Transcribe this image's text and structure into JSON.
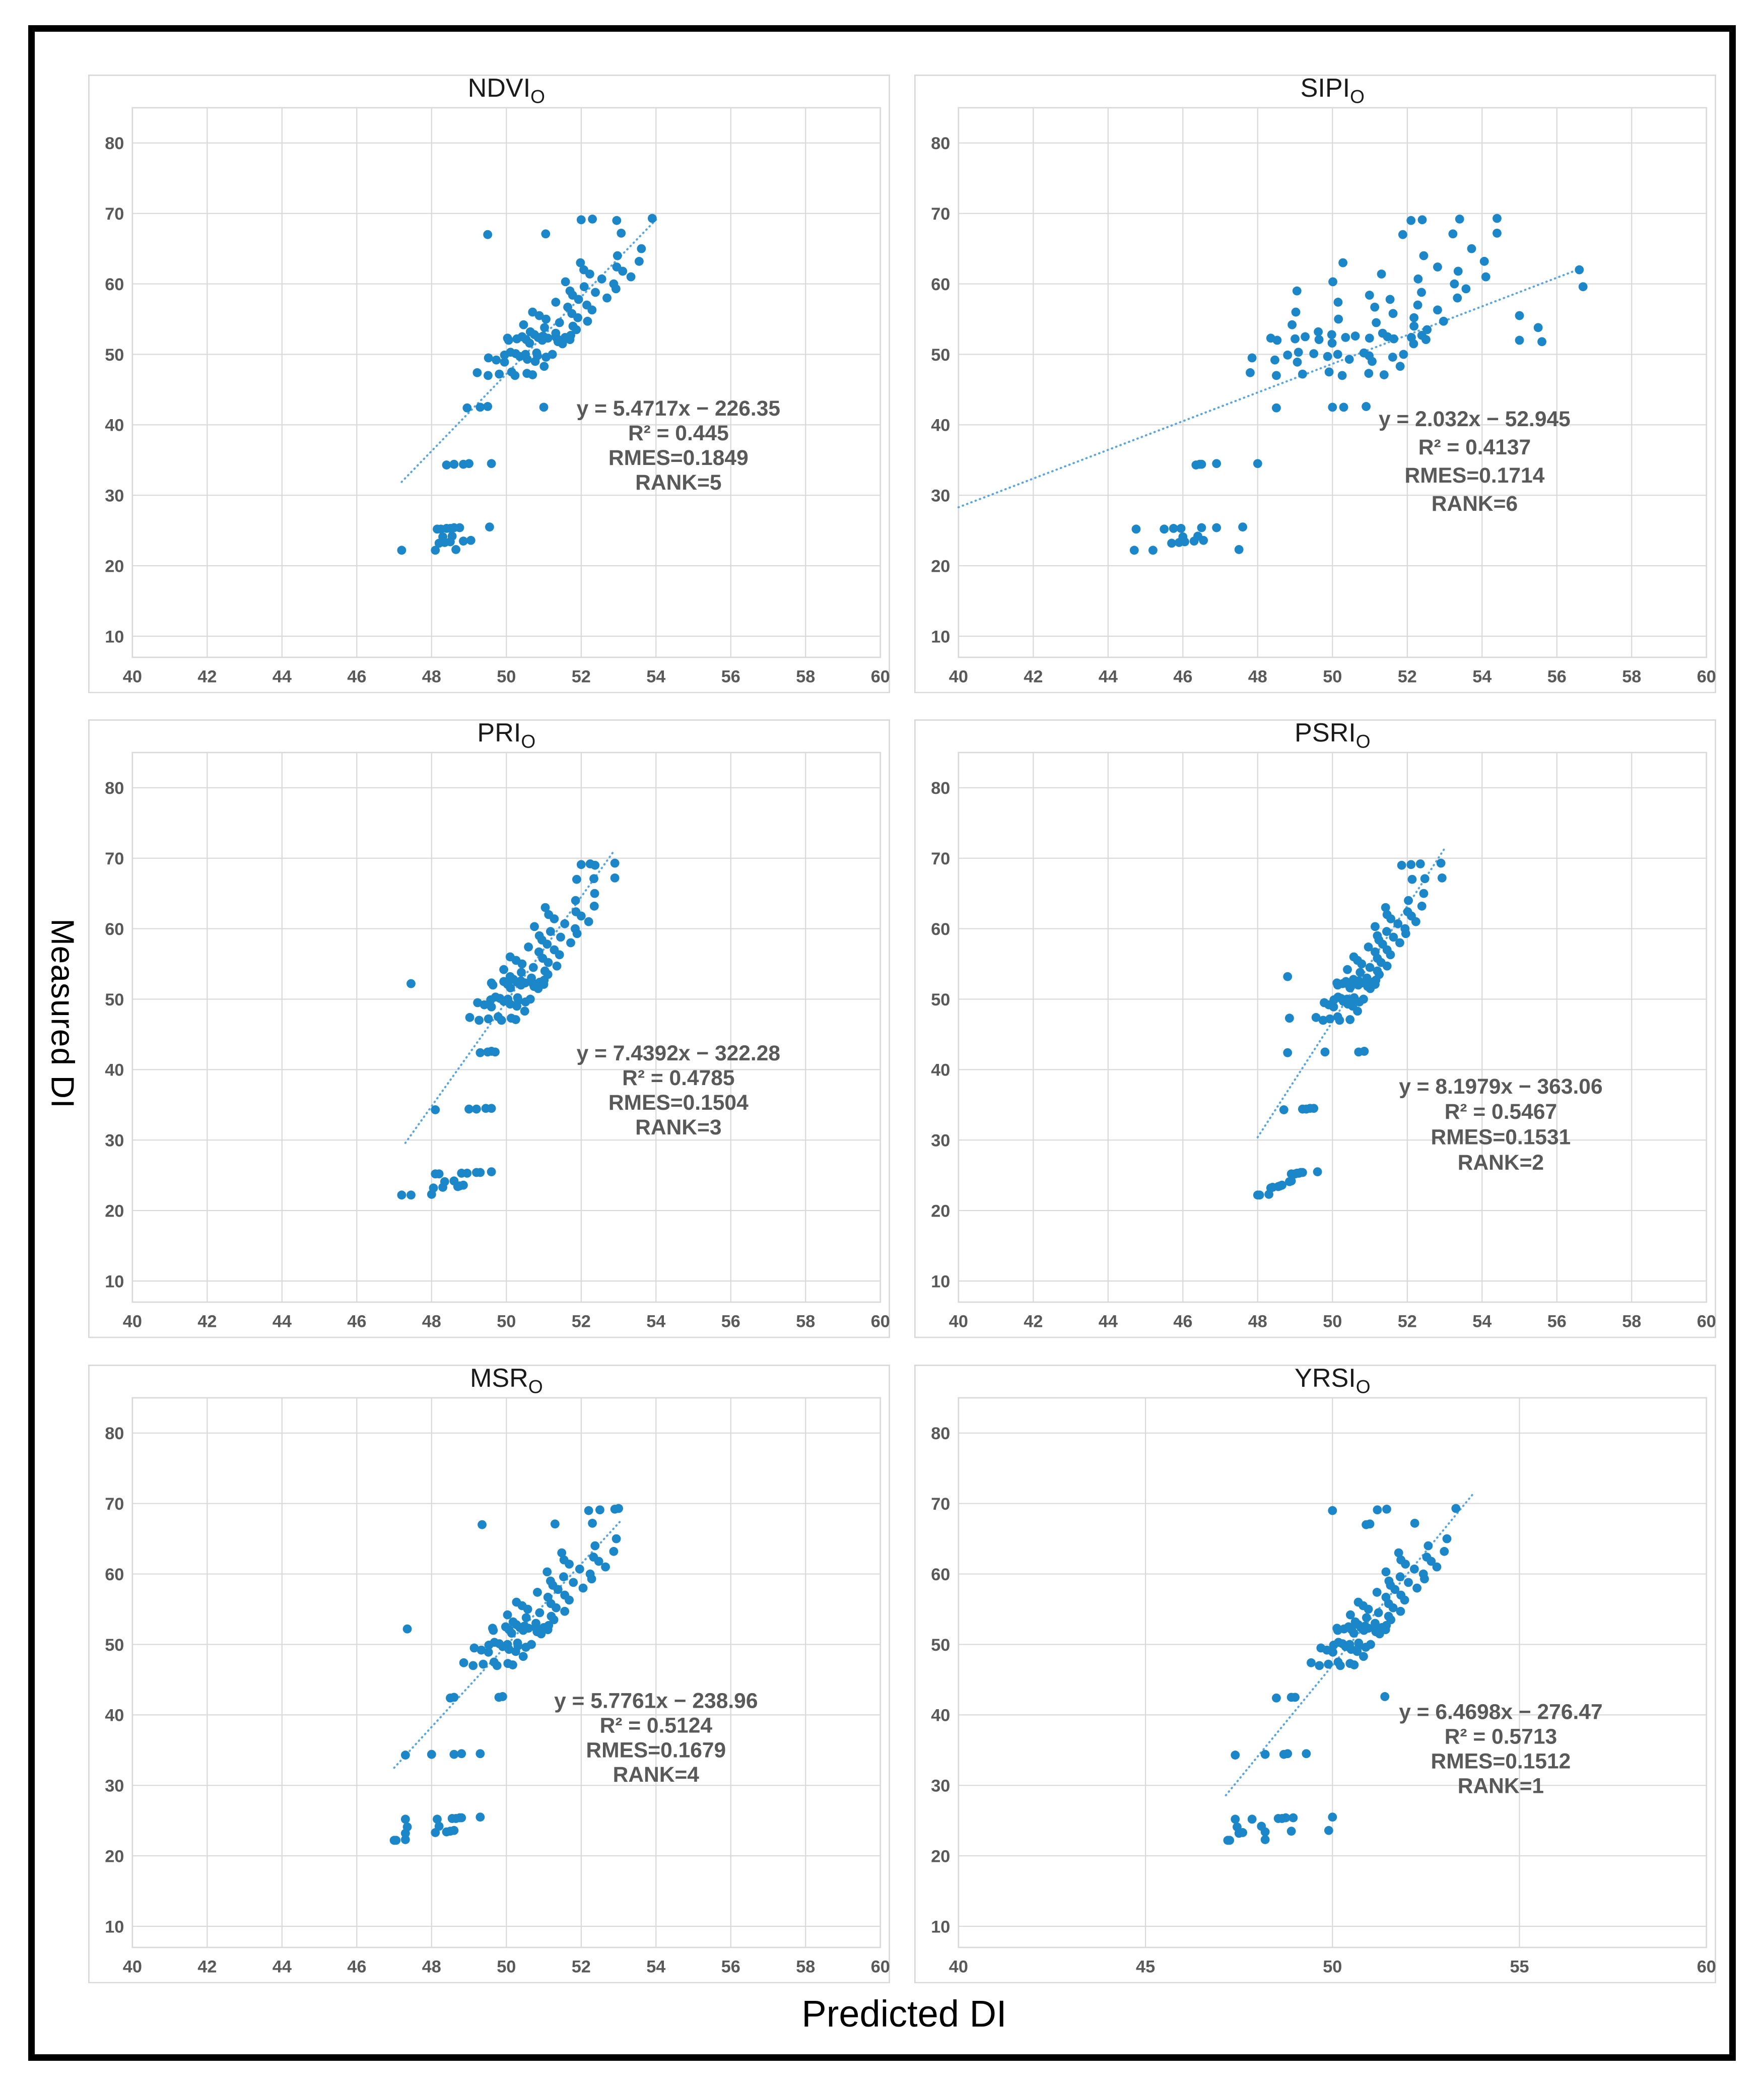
{
  "figure": {
    "xlabel": "Predicted DI",
    "ylabel": "Measured DI"
  },
  "style": {
    "point_color": "#1B86C8",
    "trend_color": "#59A7DD",
    "grid_color": "#D9D9D9",
    "panel_border": "#D9D9D9",
    "tick_color": "#595959",
    "title_color": "#1A1A1A",
    "annotation_color": "#595959",
    "outer_border": "#000000",
    "background": "#FFFFFF"
  },
  "chart_data": {
    "type": "scatter",
    "xlabel": "Predicted DI",
    "ylabel": "Measured DI",
    "xlim": [
      40,
      60
    ],
    "ylim": [
      10,
      80
    ],
    "grid": true,
    "yticks": [
      10,
      20,
      30,
      40,
      50,
      60,
      70,
      80
    ],
    "shared_y_measured_di": [
      22.2,
      22.2,
      22.3,
      23.2,
      23.3,
      23.4,
      23.5,
      23.6,
      24.1,
      24.2,
      25.2,
      25.2,
      25.3,
      25.3,
      25.4,
      25.4,
      25.5,
      34.3,
      34.4,
      34.4,
      34.5,
      34.5,
      42.4,
      42.5,
      42.5,
      42.6,
      47.0,
      47.0,
      47.1,
      47.2,
      47.3,
      47.4,
      47.5,
      48.3,
      48.9,
      49.0,
      49.2,
      49.3,
      49.5,
      49.6,
      49.7,
      49.8,
      49.9,
      50.0,
      50.0,
      50.1,
      50.2,
      50.3,
      51.5,
      51.6,
      51.8,
      52.0,
      52.0,
      52.1,
      52.1,
      52.2,
      52.2,
      52.3,
      52.3,
      52.4,
      52.4,
      52.5,
      52.5,
      52.6,
      52.7,
      52.8,
      53.0,
      53.2,
      53.5,
      53.8,
      54.0,
      54.2,
      54.5,
      54.7,
      55.0,
      55.2,
      55.5,
      55.8,
      56.0,
      56.3,
      56.7,
      57.0,
      57.4,
      57.8,
      58.0,
      58.4,
      58.8,
      59.0,
      59.3,
      59.6,
      60.0,
      60.3,
      60.7,
      61.0,
      61.4,
      61.8,
      62.0,
      62.4,
      63.0,
      63.2,
      64.0,
      65.0,
      67.0,
      67.1,
      67.2,
      69.0,
      69.1,
      69.2,
      69.3
    ],
    "panels": [
      {
        "id": "ndvi",
        "title": "NDVI",
        "title_sub": "O",
        "equation": "y = 5.4717x − 226.35",
        "r2": "R² = 0.445",
        "rmes": "RMES=0.1849",
        "rank": "RANK=5",
        "xticks": [
          40,
          42,
          44,
          46,
          48,
          50,
          52,
          54,
          56,
          58,
          60
        ],
        "trendline": [
          [
            47.2,
            31.9
          ],
          [
            54.0,
            69.1
          ]
        ],
        "annotation_anchor": [
          54.6,
          41.3
        ],
        "annotation_step": 3.5,
        "x_values": [
          47.2,
          48.1,
          48.65,
          48.2,
          48.35,
          48.5,
          48.85,
          49.05,
          48.3,
          48.55,
          48.15,
          48.25,
          48.4,
          48.5,
          48.6,
          48.75,
          49.55,
          48.4,
          48.6,
          48.85,
          49.0,
          49.6,
          48.95,
          49.3,
          51.0,
          49.5,
          50.23,
          49.51,
          50.7,
          49.81,
          50.55,
          49.22,
          50.14,
          51.01,
          49.95,
          50.77,
          49.73,
          50.56,
          49.52,
          51.06,
          50.36,
          50.83,
          49.95,
          50.51,
          51.23,
          50.25,
          50.81,
          50.11,
          51.5,
          50.62,
          51.38,
          50.06,
          50.96,
          51.7,
          50.53,
          51.36,
          50.28,
          51.11,
          50.03,
          51.57,
          50.85,
          51.32,
          50.42,
          50.98,
          51.72,
          50.75,
          51.32,
          50.64,
          51.87,
          51.02,
          51.78,
          50.46,
          51.42,
          52.17,
          51.06,
          51.91,
          50.88,
          51.75,
          50.7,
          52.29,
          51.64,
          52.15,
          51.32,
          51.93,
          52.69,
          51.77,
          52.38,
          51.7,
          52.93,
          52.08,
          52.87,
          51.58,
          52.55,
          53.33,
          52.23,
          53.11,
          52.07,
          52.95,
          51.98,
          53.55,
          52.97,
          53.61,
          49.5,
          51.05,
          53.07,
          52.95,
          52.0,
          52.3,
          53.9
        ]
      },
      {
        "id": "sipi",
        "title": "SIPI",
        "title_sub": "O",
        "equation": "y = 2.032x − 52.945",
        "r2": "R² = 0.4137",
        "rmes": "RMES=0.1714",
        "rank": "RANK=6",
        "xticks": [
          40,
          42,
          44,
          46,
          48,
          50,
          52,
          54,
          56,
          58,
          60
        ],
        "trendline": [
          [
            40.0,
            28.3
          ],
          [
            56.6,
            62.1
          ]
        ],
        "annotation_anchor": [
          53.8,
          39.8
        ],
        "annotation_step": 4.0,
        "x_values": [
          44.7,
          45.2,
          47.5,
          45.7,
          45.9,
          46.05,
          46.3,
          46.55,
          46.0,
          46.4,
          44.75,
          45.5,
          45.75,
          45.95,
          46.5,
          46.9,
          47.6,
          46.35,
          46.45,
          46.5,
          46.9,
          48.0,
          48.5,
          50.0,
          50.3,
          50.9,
          50.26,
          48.5,
          51.38,
          49.2,
          50.97,
          47.8,
          49.91,
          51.81,
          49.06,
          51.06,
          48.46,
          50.45,
          47.85,
          51.61,
          49.87,
          50.98,
          48.8,
          50.14,
          51.9,
          49.5,
          50.84,
          49.09,
          52.17,
          49.99,
          55.6,
          48.52,
          55.0,
          52.5,
          49.64,
          51.64,
          49.0,
          50.99,
          48.35,
          52.11,
          50.35,
          51.47,
          49.27,
          50.61,
          52.39,
          49.98,
          51.34,
          49.62,
          52.53,
          55.5,
          52.18,
          48.92,
          51.17,
          52.97,
          50.16,
          52.18,
          55.0,
          51.62,
          49.02,
          52.81,
          51.13,
          52.28,
          50.15,
          51.54,
          53.34,
          50.99,
          52.38,
          49.05,
          53.57,
          56.7,
          53.26,
          50.01,
          52.29,
          54.1,
          51.31,
          53.36,
          56.6,
          52.81,
          50.28,
          54.06,
          52.44,
          53.72,
          51.88,
          53.22,
          54.4,
          52.1,
          52.4,
          53.4,
          54.4
        ]
      },
      {
        "id": "pri",
        "title": "PRI",
        "title_sub": "O",
        "equation": "y = 7.4392x − 322.28",
        "r2": "R² = 0.4785",
        "rmes": "RMES=0.1504",
        "rank": "RANK=3",
        "xticks": [
          40,
          42,
          44,
          46,
          48,
          50,
          52,
          54,
          56,
          58,
          60
        ],
        "trendline": [
          [
            47.3,
            29.6
          ],
          [
            52.9,
            71.2
          ]
        ],
        "annotation_anchor": [
          54.6,
          41.3
        ],
        "annotation_step": 3.5,
        "x_values": [
          47.2,
          47.45,
          48.0,
          48.05,
          48.3,
          48.7,
          48.75,
          48.85,
          48.35,
          48.6,
          48.1,
          48.2,
          48.8,
          48.95,
          49.2,
          49.3,
          49.6,
          48.1,
          49.0,
          49.2,
          49.45,
          49.6,
          49.3,
          49.5,
          49.7,
          49.6,
          49.87,
          49.27,
          50.25,
          49.52,
          50.13,
          49.02,
          49.78,
          50.49,
          49.6,
          50.28,
          49.41,
          50.1,
          49.23,
          50.51,
          49.93,
          50.32,
          49.58,
          50.04,
          50.64,
          49.83,
          50.3,
          49.71,
          50.85,
          50.11,
          50.74,
          49.64,
          50.39,
          51.0,
          50.03,
          50.71,
          47.45,
          50.5,
          49.6,
          50.89,
          50.29,
          50.68,
          49.93,
          50.39,
          51.01,
          50.19,
          50.67,
          50.1,
          51.11,
          50.4,
          51.03,
          49.93,
          50.72,
          51.35,
          50.42,
          51.12,
          50.26,
          50.97,
          50.1,
          51.42,
          50.87,
          51.28,
          50.59,
          51.09,
          51.72,
          50.95,
          51.45,
          50.88,
          51.89,
          51.18,
          51.84,
          50.75,
          51.56,
          52.2,
          51.28,
          52.0,
          51.13,
          51.86,
          51.04,
          52.35,
          51.85,
          52.36,
          51.88,
          52.34,
          52.9,
          52.37,
          52.0,
          52.24,
          52.9
        ]
      },
      {
        "id": "psri",
        "title": "PSRI",
        "title_sub": "O",
        "equation": "y = 8.1979x − 363.06",
        "r2": "R² = 0.5467",
        "rmes": "RMES=0.1531",
        "rank": "RANK=2",
        "xticks": [
          40,
          42,
          44,
          46,
          48,
          50,
          52,
          54,
          56,
          58,
          60
        ],
        "trendline": [
          [
            48.0,
            30.4
          ],
          [
            53.0,
            71.4
          ]
        ],
        "annotation_anchor": [
          54.5,
          36.6
        ],
        "annotation_step": 3.6,
        "x_values": [
          48.0,
          48.05,
          48.3,
          48.35,
          48.4,
          48.55,
          48.6,
          48.65,
          48.85,
          48.9,
          48.9,
          49.0,
          49.05,
          49.1,
          49.15,
          49.2,
          49.6,
          48.7,
          49.2,
          49.3,
          49.4,
          49.5,
          48.8,
          49.8,
          50.7,
          50.85,
          50.19,
          49.75,
          50.47,
          49.93,
          48.85,
          49.56,
          50.14,
          50.67,
          50.03,
          50.54,
          49.9,
          50.41,
          49.78,
          50.72,
          50.29,
          50.58,
          50.04,
          50.39,
          50.83,
          50.23,
          50.58,
          50.15,
          51.01,
          50.47,
          50.94,
          50.14,
          50.69,
          51.14,
          50.42,
          50.93,
          50.27,
          50.78,
          50.12,
          51.06,
          50.62,
          50.91,
          50.36,
          50.7,
          51.16,
          50.56,
          50.92,
          48.8,
          51.25,
          50.74,
          51.2,
          50.4,
          51.0,
          51.46,
          50.78,
          51.3,
          50.67,
          51.2,
          50.57,
          51.55,
          51.14,
          51.46,
          50.96,
          51.34,
          51.8,
          51.24,
          51.63,
          51.2,
          51.96,
          51.45,
          51.94,
          51.14,
          51.75,
          52.23,
          51.56,
          52.11,
          51.46,
          52.01,
          51.42,
          52.39,
          52.03,
          52.44,
          52.13,
          52.47,
          52.93,
          51.85,
          52.1,
          52.35,
          52.9
        ]
      },
      {
        "id": "msr",
        "title": "MSR",
        "title_sub": "O",
        "equation": "y = 5.7761x − 238.96",
        "r2": "R² = 0.5124",
        "rmes": "RMES=0.1679",
        "rank": "RANK=4",
        "xticks": [
          40,
          42,
          44,
          46,
          48,
          50,
          52,
          54,
          56,
          58,
          60
        ],
        "trendline": [
          [
            47.0,
            32.5
          ],
          [
            53.05,
            67.5
          ]
        ],
        "annotation_anchor": [
          54.0,
          41.0
        ],
        "annotation_step": 3.5,
        "x_values": [
          47.0,
          47.05,
          47.3,
          47.3,
          48.1,
          48.4,
          48.5,
          48.6,
          47.35,
          48.2,
          47.3,
          48.15,
          48.55,
          48.65,
          48.75,
          48.8,
          49.3,
          47.3,
          48.0,
          48.6,
          48.8,
          49.3,
          48.5,
          48.6,
          49.8,
          49.9,
          49.75,
          49.11,
          50.17,
          49.38,
          50.04,
          48.86,
          49.67,
          50.45,
          49.52,
          50.25,
          49.33,
          50.07,
          49.14,
          50.52,
          49.9,
          50.31,
          49.53,
          50.03,
          50.67,
          49.81,
          50.3,
          49.68,
          50.93,
          50.14,
          50.82,
          49.65,
          50.45,
          51.11,
          50.07,
          50.81,
          47.35,
          50.59,
          49.63,
          51.0,
          50.36,
          50.78,
          49.98,
          50.48,
          51.13,
          50.27,
          50.79,
          50.18,
          51.27,
          50.53,
          51.2,
          50.03,
          50.89,
          51.56,
          50.57,
          51.33,
          50.42,
          51.19,
          50.27,
          51.68,
          51.11,
          51.56,
          50.83,
          51.38,
          52.05,
          51.24,
          51.79,
          51.18,
          52.28,
          51.53,
          52.24,
          51.09,
          51.96,
          52.65,
          51.68,
          52.47,
          51.54,
          52.33,
          51.48,
          52.87,
          52.37,
          52.94,
          49.35,
          51.3,
          52.3,
          52.2,
          52.5,
          52.9,
          53.0
        ]
      },
      {
        "id": "yrsi",
        "title": "YRSI",
        "title_sub": "O",
        "equation": "y = 6.4698x − 276.47",
        "r2": "R² = 0.5713",
        "rmes": "RMES=0.1512",
        "rank": "RANK=1",
        "xticks": [
          40,
          45,
          50,
          55,
          60
        ],
        "trendline": [
          [
            47.15,
            28.6
          ],
          [
            53.75,
            71.3
          ]
        ],
        "annotation_anchor": [
          54.5,
          39.4
        ],
        "annotation_step": 3.5,
        "x_values": [
          47.2,
          47.25,
          48.2,
          47.5,
          47.6,
          48.2,
          48.9,
          49.9,
          47.45,
          48.1,
          47.4,
          47.85,
          48.55,
          48.65,
          48.75,
          48.95,
          50.0,
          47.4,
          48.2,
          48.7,
          48.8,
          49.3,
          48.5,
          48.9,
          49.0,
          51.4,
          50.21,
          49.65,
          50.58,
          49.89,
          50.47,
          49.43,
          50.15,
          50.83,
          50.01,
          50.66,
          49.85,
          50.5,
          49.69,
          50.89,
          50.35,
          50.71,
          50.03,
          50.46,
          51.02,
          50.27,
          50.7,
          50.16,
          51.26,
          50.57,
          51.16,
          50.14,
          50.84,
          51.42,
          50.51,
          51.15,
          50.31,
          50.96,
          50.12,
          51.32,
          50.76,
          51.13,
          50.43,
          50.87,
          51.44,
          50.69,
          51.14,
          50.61,
          51.56,
          50.91,
          51.5,
          50.48,
          51.23,
          51.82,
          50.96,
          51.62,
          50.82,
          51.5,
          50.69,
          51.93,
          51.43,
          51.83,
          51.19,
          51.67,
          52.26,
          51.55,
          52.03,
          51.51,
          52.46,
          51.81,
          52.43,
          51.43,
          52.19,
          52.79,
          51.95,
          52.64,
          51.83,
          52.52,
          51.77,
          52.99,
          52.56,
          53.06,
          50.9,
          51.0,
          52.2,
          50.0,
          51.2,
          51.45,
          53.3
        ]
      }
    ]
  }
}
